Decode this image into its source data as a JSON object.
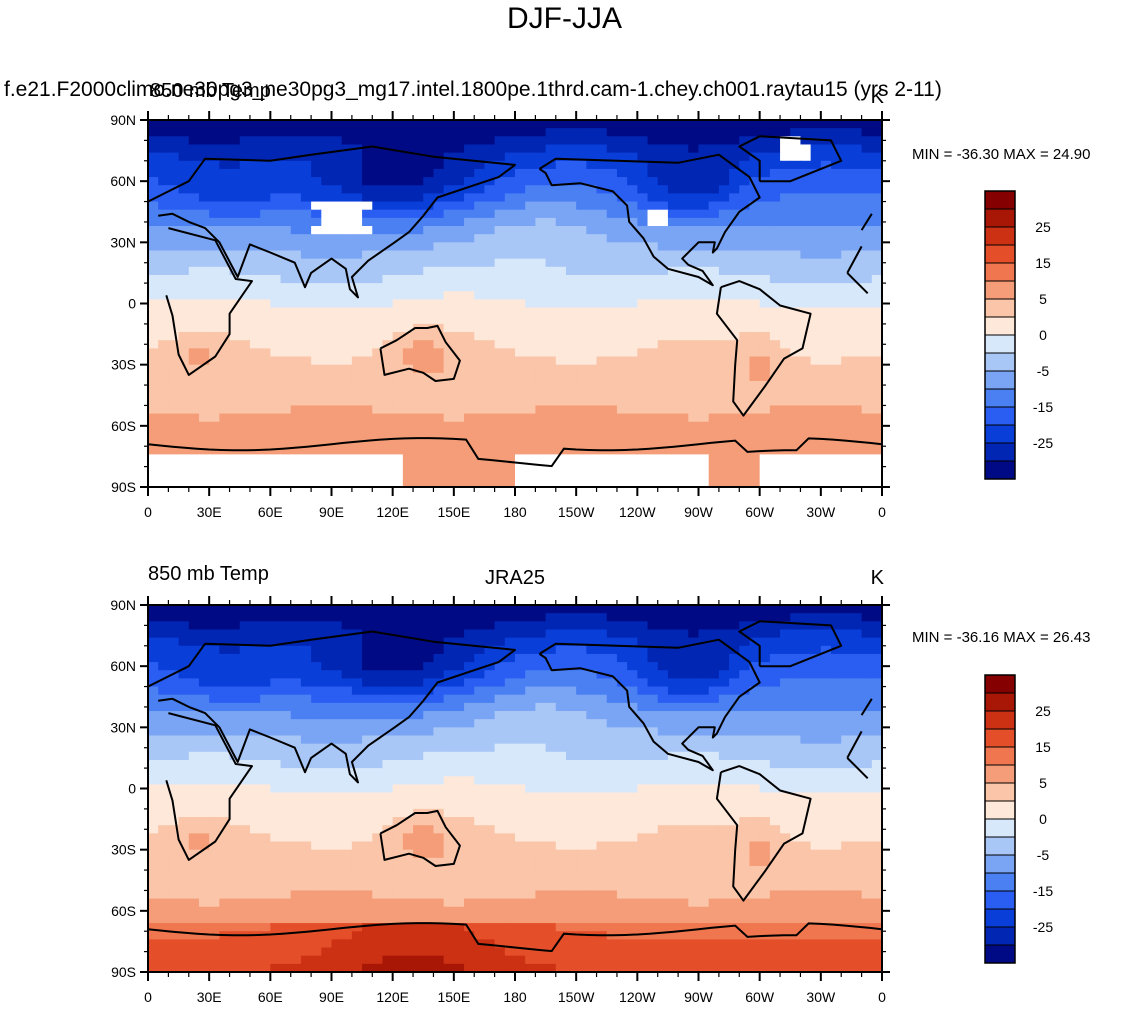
{
  "title": "DJF-JJA",
  "lat_labels": [
    "90N",
    "60N",
    "30N",
    "0",
    "30S",
    "60S",
    "90S"
  ],
  "lon_labels": [
    "0",
    "30E",
    "60E",
    "90E",
    "120E",
    "150E",
    "180",
    "150W",
    "120W",
    "90W",
    "60W",
    "30W",
    "0"
  ],
  "colorbar": {
    "colors": [
      "#000a85",
      "#0026b3",
      "#0a3ed8",
      "#2a5ef2",
      "#4a80f2",
      "#7aa4f4",
      "#a8c6f6",
      "#d8e8fb",
      "#fde8da",
      "#fac5a8",
      "#f59d78",
      "#f0764f",
      "#e44f2a",
      "#cc3114",
      "#a81605",
      "#850000"
    ],
    "labels": [
      "25",
      "15",
      "5",
      "0",
      "-5",
      "-15",
      "-25"
    ]
  },
  "panels": [
    {
      "title": "f.e21.F2000climo.ne30pg3_ne30pg3_mg17.intel.1800pe.1thrd.cam-1.chey.ch001.raytau15 (yrs 2-11)",
      "left": "850 mb Temp",
      "center": "",
      "right": "K",
      "min_max": "MIN = -36.30 MAX =  24.90",
      "field": "model"
    },
    {
      "title": "",
      "left": "850 mb Temp",
      "center": "JRA25",
      "right": "K",
      "min_max": "MIN = -36.16 MAX =  26.43",
      "field": "reanalysis"
    }
  ]
}
